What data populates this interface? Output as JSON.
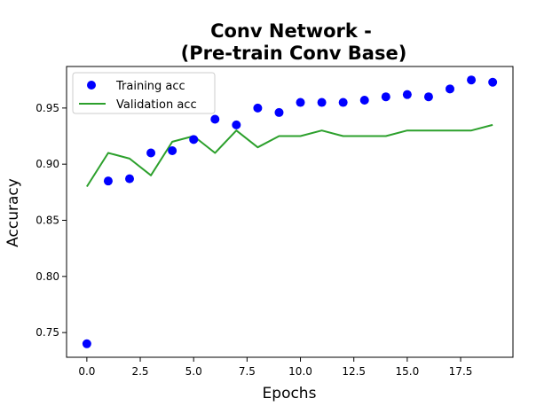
{
  "chart_data": {
    "type": "line",
    "title_lines": [
      "Conv Network -",
      "(Pre-train Conv Base)"
    ],
    "xlabel": "Epochs",
    "ylabel": "Accuracy",
    "xlim": [
      -0.95,
      19.95
    ],
    "ylim": [
      0.728,
      0.987
    ],
    "x_ticks": [
      0.0,
      2.5,
      5.0,
      7.5,
      10.0,
      12.5,
      15.0,
      17.5
    ],
    "x_tick_labels": [
      "0.0",
      "2.5",
      "5.0",
      "7.5",
      "10.0",
      "12.5",
      "15.0",
      "17.5"
    ],
    "y_ticks": [
      0.75,
      0.8,
      0.85,
      0.9,
      0.95
    ],
    "y_tick_labels": [
      "0.75",
      "0.80",
      "0.85",
      "0.90",
      "0.95"
    ],
    "grid": false,
    "legend_position": "upper-left",
    "x": [
      0,
      1,
      2,
      3,
      4,
      5,
      6,
      7,
      8,
      9,
      10,
      11,
      12,
      13,
      14,
      15,
      16,
      17,
      18,
      19
    ],
    "series": [
      {
        "name": "Training acc",
        "style": "markers",
        "color": "#0000ff",
        "values": [
          0.74,
          0.885,
          0.887,
          0.91,
          0.912,
          0.922,
          0.94,
          0.935,
          0.95,
          0.946,
          0.955,
          0.955,
          0.955,
          0.957,
          0.96,
          0.962,
          0.96,
          0.967,
          0.975,
          0.973
        ]
      },
      {
        "name": "Validation acc",
        "style": "line",
        "color": "#2ca02c",
        "values": [
          0.88,
          0.91,
          0.905,
          0.89,
          0.92,
          0.925,
          0.91,
          0.93,
          0.915,
          0.925,
          0.925,
          0.93,
          0.925,
          0.925,
          0.925,
          0.93,
          0.93,
          0.93,
          0.93,
          0.935
        ]
      }
    ]
  }
}
